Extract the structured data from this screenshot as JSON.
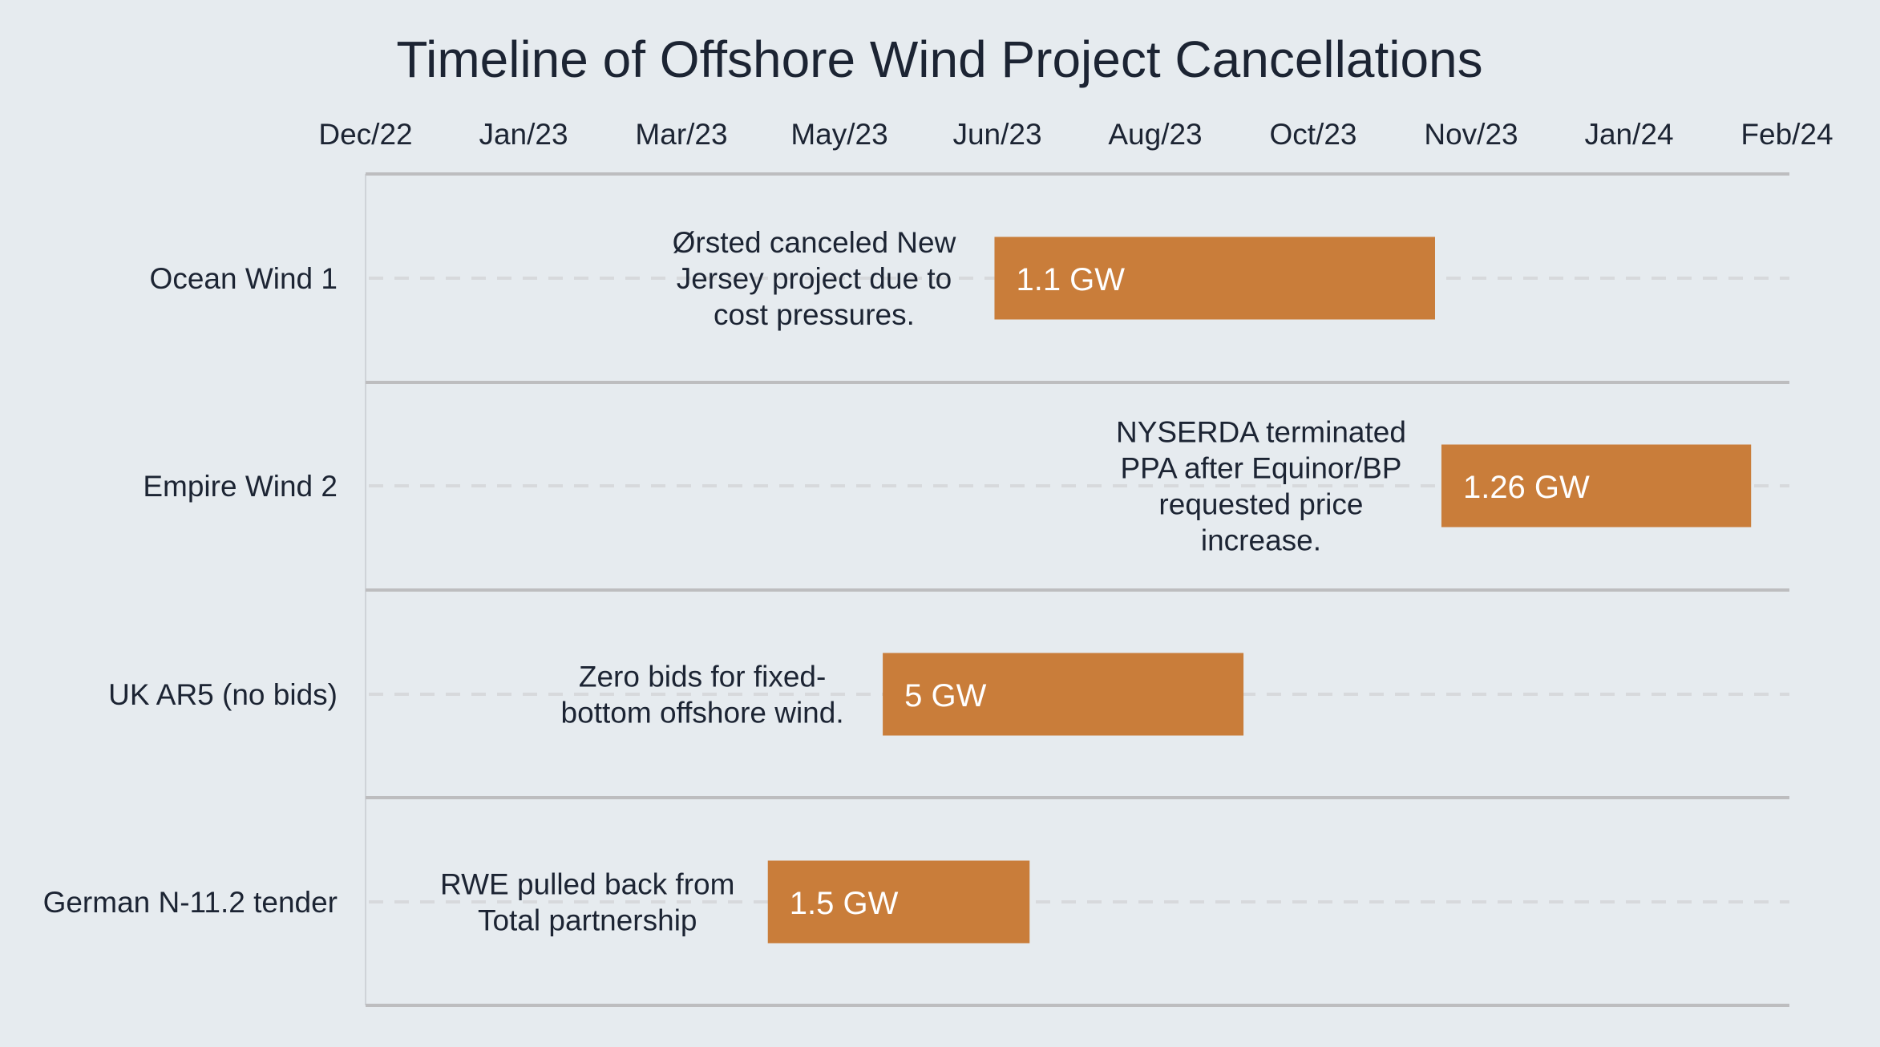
{
  "chart_data": {
    "type": "timeline",
    "title": "Timeline of Offshore Wind Project Cancellations",
    "x_axis": {
      "position": "top",
      "tick_labels": [
        "Dec/22",
        "Jan/23",
        "Mar/23",
        "May/23",
        "Jun/23",
        "Aug/23",
        "Oct/23",
        "Nov/23",
        "Jan/24",
        "Feb/24"
      ],
      "range": [
        "2022-12-01",
        "2024-02-20"
      ]
    },
    "bar_color": "#c97d3a",
    "rows": [
      {
        "label": "Ocean Wind 1",
        "start": "2023-06-16",
        "end": "2023-11-01",
        "value_label": "1.1 GW",
        "annotation": [
          "Ørsted canceled New",
          "Jersey project due to",
          "cost pressures."
        ]
      },
      {
        "label": "Empire Wind 2",
        "start": "2023-11-03",
        "end": "2024-02-08",
        "value_label": "1.26 GW",
        "annotation": [
          "NYSERDA terminated",
          "PPA after Equinor/BP",
          "requested price",
          "increase."
        ]
      },
      {
        "label": "UK AR5 (no bids)",
        "start": "2023-05-12",
        "end": "2023-09-02",
        "value_label": "5 GW",
        "annotation": [
          "Zero bids for fixed-",
          "bottom offshore wind."
        ]
      },
      {
        "label": "German N-11.2 tender",
        "start": "2023-04-06",
        "end": "2023-06-27",
        "value_label": "1.5 GW",
        "annotation": [
          "RWE pulled back from",
          "Total partnership"
        ]
      }
    ]
  }
}
